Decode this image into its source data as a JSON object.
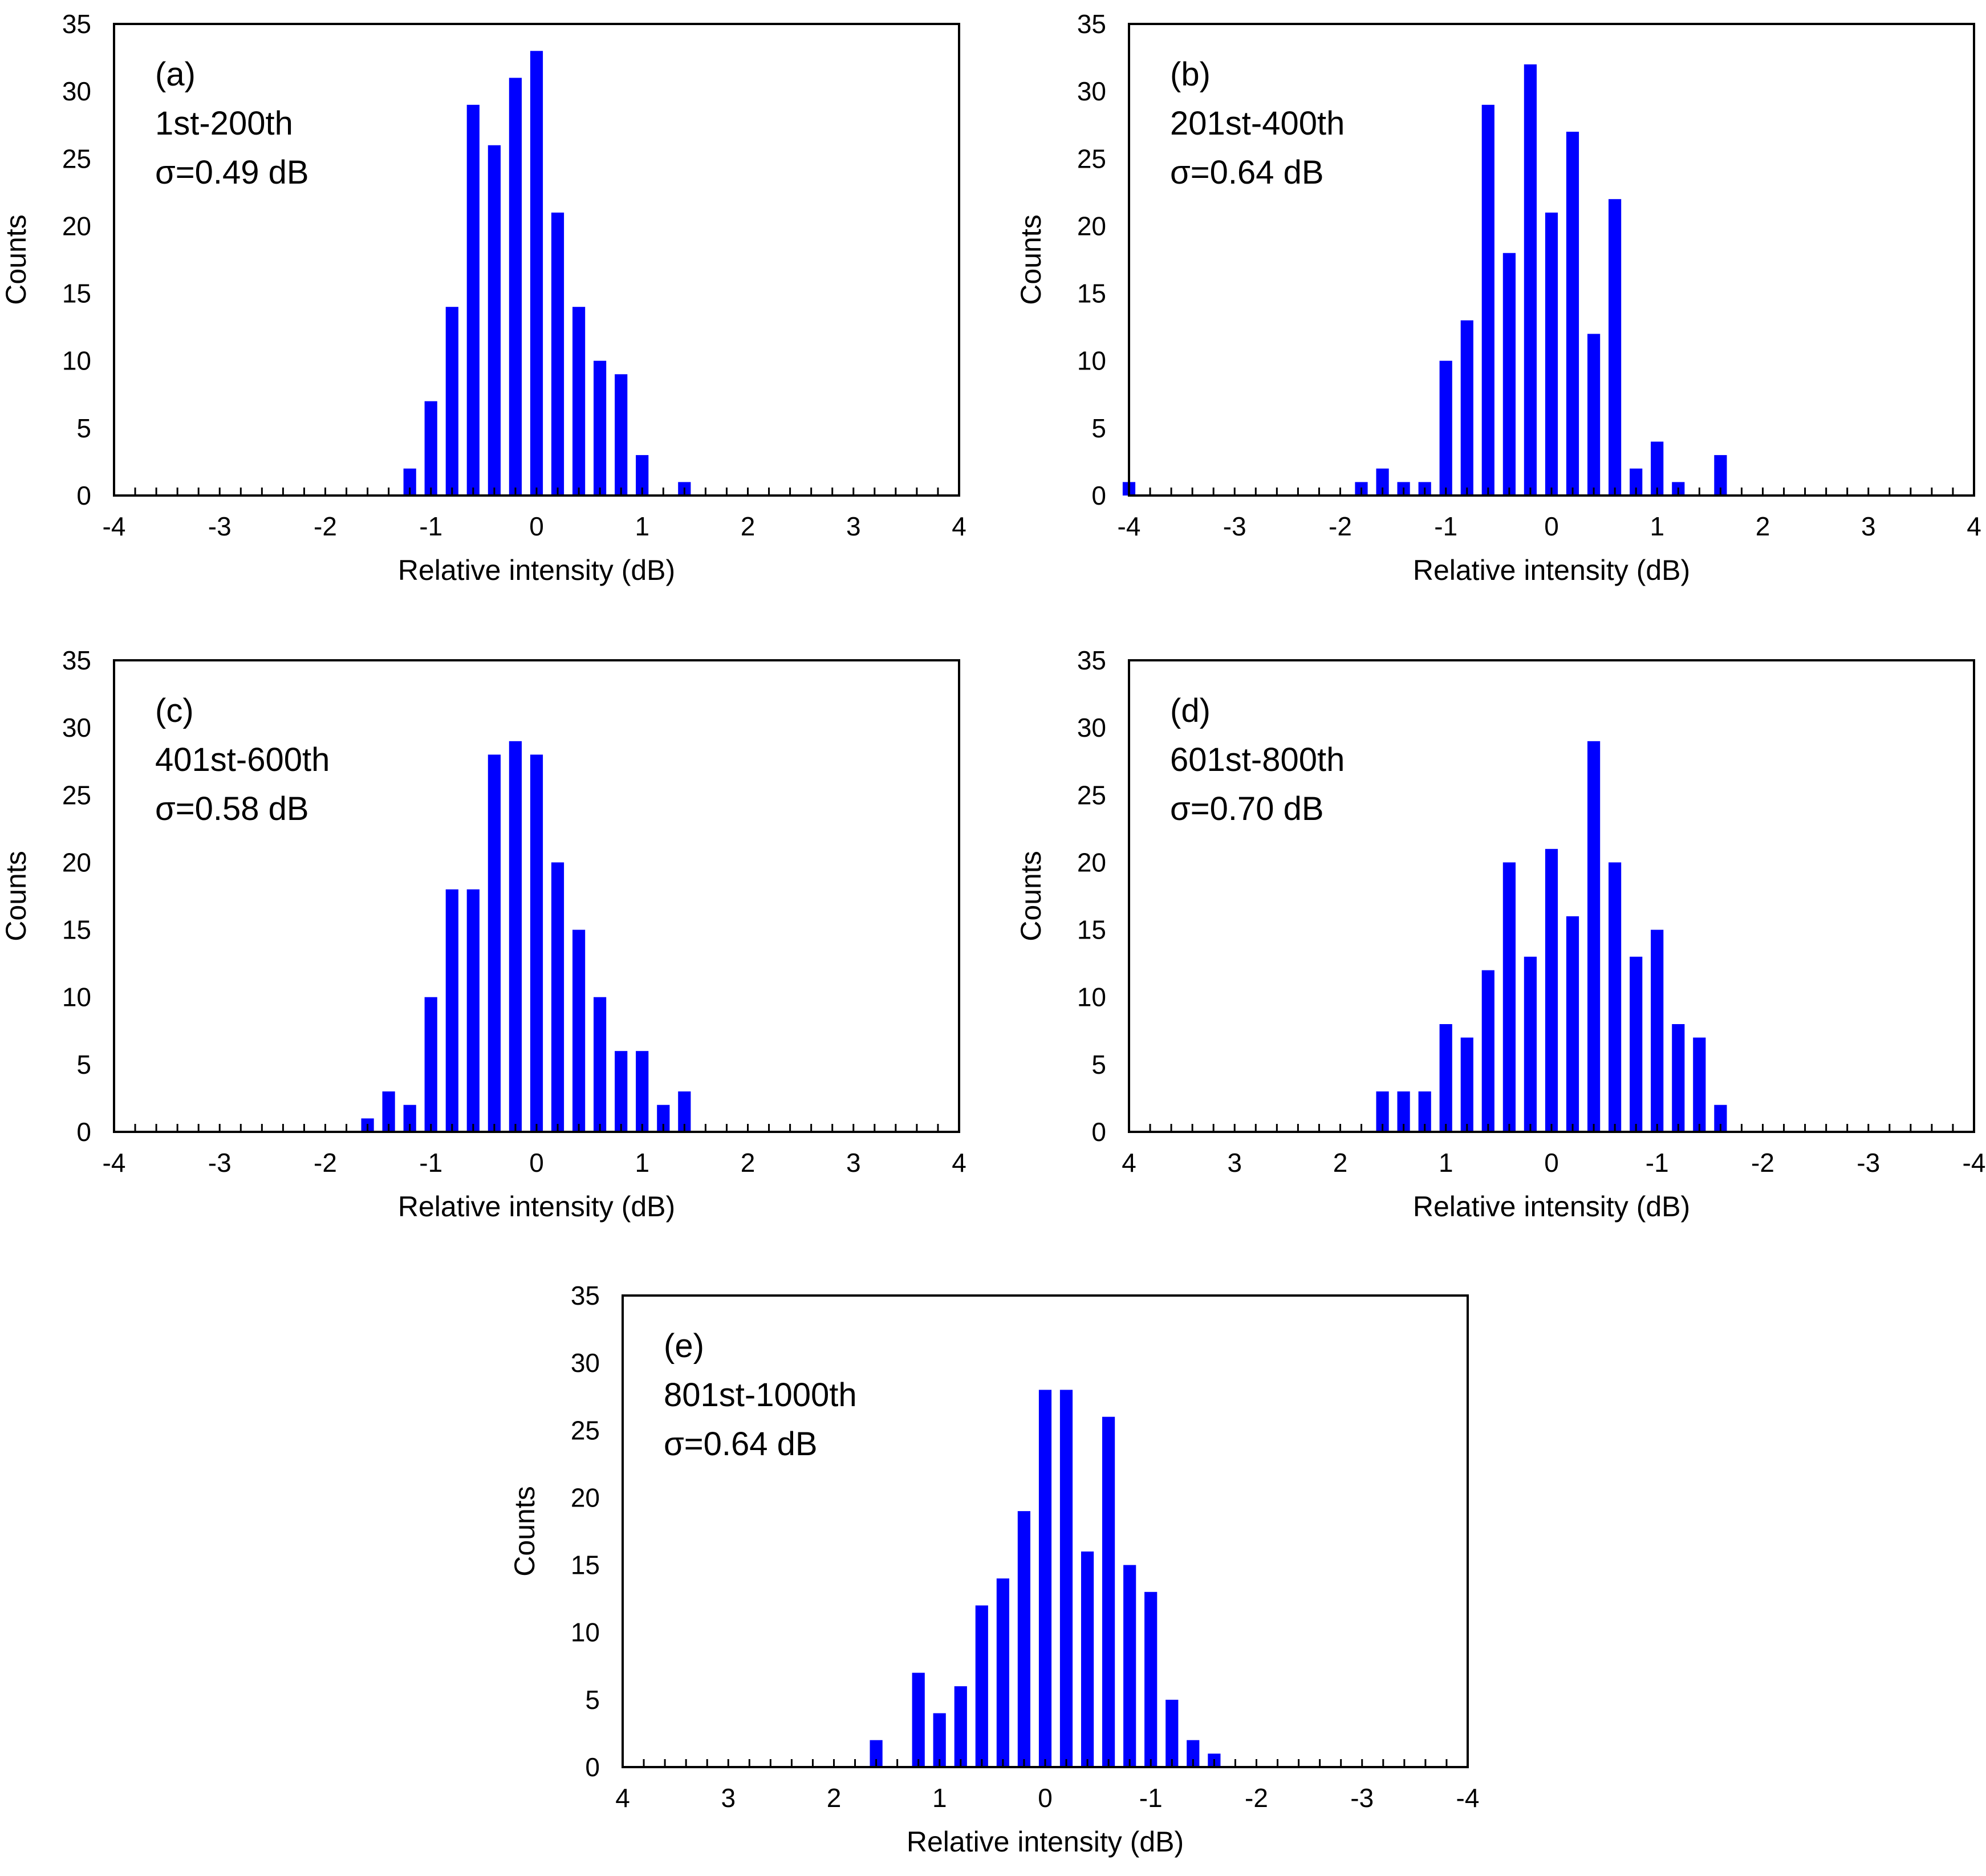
{
  "bar_color": "#0000ff",
  "chart_data": [
    {
      "type": "bar",
      "panel": "(a)",
      "range_label": "1st-200th",
      "sigma_label": "σ=0.49 dB",
      "xlabel": "Relative intensity (dB)",
      "ylabel": "Counts",
      "xlim": [
        -4,
        4
      ],
      "ylim": [
        0,
        35
      ],
      "x_reversed": false,
      "xticks": [
        "-4",
        "-3",
        "-2",
        "-1",
        "0",
        "1",
        "2",
        "3",
        "4"
      ],
      "yticks": [
        "0",
        "5",
        "10",
        "15",
        "20",
        "25",
        "30",
        "35"
      ],
      "x": [
        -1.2,
        -1.0,
        -0.8,
        -0.6,
        -0.4,
        -0.2,
        0.0,
        0.2,
        0.4,
        0.6,
        0.8,
        1.0,
        1.4
      ],
      "values": [
        2,
        7,
        14,
        29,
        26,
        31,
        33,
        21,
        14,
        10,
        9,
        3,
        1
      ]
    },
    {
      "type": "bar",
      "panel": "(b)",
      "range_label": "201st-400th",
      "sigma_label": "σ=0.64 dB",
      "xlabel": "Relative intensity (dB)",
      "ylabel": "Counts",
      "xlim": [
        -4,
        4
      ],
      "ylim": [
        0,
        35
      ],
      "x_reversed": false,
      "xticks": [
        "-4",
        "-3",
        "-2",
        "-1",
        "0",
        "1",
        "2",
        "3",
        "4"
      ],
      "yticks": [
        "0",
        "5",
        "10",
        "15",
        "20",
        "25",
        "30",
        "35"
      ],
      "x": [
        -4.0,
        -1.8,
        -1.6,
        -1.4,
        -1.2,
        -1.0,
        -0.8,
        -0.6,
        -0.4,
        -0.2,
        0.0,
        0.2,
        0.4,
        0.6,
        0.8,
        1.0,
        1.2,
        1.6
      ],
      "values": [
        1,
        1,
        2,
        1,
        1,
        10,
        13,
        29,
        18,
        32,
        21,
        27,
        12,
        22,
        2,
        4,
        1,
        3
      ]
    },
    {
      "type": "bar",
      "panel": "(c)",
      "range_label": "401st-600th",
      "sigma_label": "σ=0.58 dB",
      "xlabel": "Relative intensity (dB)",
      "ylabel": "Counts",
      "xlim": [
        -4,
        4
      ],
      "ylim": [
        0,
        35
      ],
      "x_reversed": false,
      "xticks": [
        "-4",
        "-3",
        "-2",
        "-1",
        "0",
        "1",
        "2",
        "3",
        "4"
      ],
      "yticks": [
        "0",
        "5",
        "10",
        "15",
        "20",
        "25",
        "30",
        "35"
      ],
      "x": [
        -1.6,
        -1.4,
        -1.2,
        -1.0,
        -0.8,
        -0.6,
        -0.4,
        -0.2,
        0.0,
        0.2,
        0.4,
        0.6,
        0.8,
        1.0,
        1.2,
        1.4
      ],
      "values": [
        1,
        3,
        2,
        10,
        18,
        18,
        28,
        29,
        28,
        20,
        15,
        10,
        6,
        6,
        2,
        3
      ]
    },
    {
      "type": "bar",
      "panel": "(d)",
      "range_label": "601st-800th",
      "sigma_label": "σ=0.70 dB",
      "xlabel": "Relative intensity (dB)",
      "ylabel": "Counts",
      "xlim": [
        4,
        -4
      ],
      "ylim": [
        0,
        35
      ],
      "x_reversed": true,
      "xticks": [
        "4",
        "3",
        "2",
        "1",
        "0",
        "-1",
        "-2",
        "-3",
        "-4"
      ],
      "yticks": [
        "0",
        "5",
        "10",
        "15",
        "20",
        "25",
        "30",
        "35"
      ],
      "x": [
        1.6,
        1.4,
        1.2,
        1.0,
        0.8,
        0.6,
        0.4,
        0.2,
        0.0,
        -0.2,
        -0.4,
        -0.6,
        -0.8,
        -1.0,
        -1.2,
        -1.4,
        -1.6
      ],
      "values": [
        3,
        3,
        3,
        8,
        7,
        12,
        20,
        13,
        21,
        16,
        29,
        20,
        13,
        15,
        8,
        7,
        2
      ]
    },
    {
      "type": "bar",
      "panel": "(e)",
      "range_label": "801st-1000th",
      "sigma_label": "σ=0.64 dB",
      "xlabel": "Relative intensity (dB)",
      "ylabel": "Counts",
      "xlim": [
        4,
        -4
      ],
      "ylim": [
        0,
        35
      ],
      "x_reversed": true,
      "xticks": [
        "4",
        "3",
        "2",
        "1",
        "0",
        "-1",
        "-2",
        "-3",
        "-4"
      ],
      "yticks": [
        "0",
        "5",
        "10",
        "15",
        "20",
        "25",
        "30",
        "35"
      ],
      "x": [
        1.6,
        1.2,
        1.0,
        0.8,
        0.6,
        0.4,
        0.2,
        0.0,
        -0.2,
        -0.4,
        -0.6,
        -0.8,
        -1.0,
        -1.2,
        -1.4,
        -1.6
      ],
      "values": [
        2,
        7,
        4,
        6,
        12,
        14,
        19,
        28,
        28,
        16,
        26,
        15,
        13,
        5,
        2,
        1
      ]
    }
  ]
}
